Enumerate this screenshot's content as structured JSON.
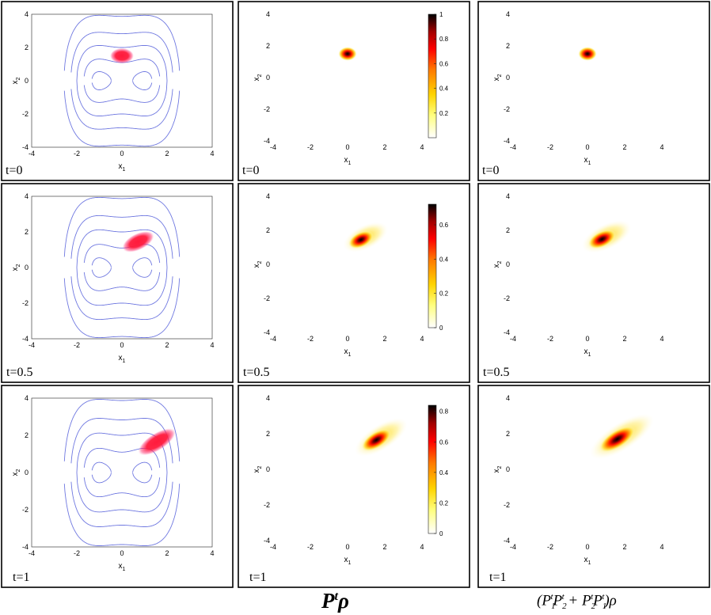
{
  "chart_data": {
    "type": "heatmap",
    "description_rows": [
      "t=0",
      "t=0.5",
      "t=1"
    ],
    "axes": {
      "xlabel": "x",
      "xlabel_sub": "1",
      "ylabel": "x",
      "ylabel_sub": "2",
      "xlim": [
        -4,
        4
      ],
      "ylim": [
        -4,
        4
      ],
      "xticks": [
        -4,
        -2,
        0,
        2,
        4
      ],
      "yticks": [
        -4,
        -2,
        0,
        2,
        4
      ]
    },
    "contour_levels": [
      -0.1,
      0.6,
      2.0,
      4.0,
      7.5
    ],
    "rows": [
      {
        "time_label": "t=0",
        "density_p": {
          "cx": 0.0,
          "cy": 1.5,
          "sx": 0.25,
          "sy": 0.22,
          "rho": 0.0
        },
        "density_q": {
          "cx": 0.0,
          "cy": 1.5,
          "sx": 0.25,
          "sy": 0.22,
          "rho": 0.0
        },
        "colorbar": {
          "max": 1.0,
          "ticks": [
            0.2,
            0.4,
            0.6,
            0.8,
            1
          ],
          "tick_labels": [
            "0.2",
            "0.4",
            "0.6",
            "0.8",
            "1"
          ]
        }
      },
      {
        "time_label": "t=0.5",
        "density_p": {
          "cx": 0.72,
          "cy": 1.45,
          "sx": 0.36,
          "sy": 0.22,
          "rho": 0.55
        },
        "density_q": {
          "cx": 0.78,
          "cy": 1.48,
          "sx": 0.4,
          "sy": 0.23,
          "rho": 0.55
        },
        "colorbar": {
          "max": 0.72,
          "ticks": [
            0,
            0.2,
            0.4,
            0.6
          ],
          "tick_labels": [
            "0",
            "0.2",
            "0.4",
            "0.6"
          ]
        }
      },
      {
        "time_label": "t=1",
        "density_p": {
          "cx": 1.55,
          "cy": 1.65,
          "sx": 0.45,
          "sy": 0.22,
          "rho": 0.72
        },
        "density_q": {
          "cx": 1.6,
          "cy": 1.7,
          "sx": 0.55,
          "sy": 0.24,
          "rho": 0.72
        },
        "colorbar": {
          "max": 0.84,
          "ticks": [
            0,
            0.2,
            0.4,
            0.6,
            0.8
          ],
          "tick_labels": [
            "0",
            "0.2",
            "0.4",
            "0.6",
            "0.8"
          ]
        }
      }
    ],
    "column_labels": {
      "middle": "P^t ρ",
      "right": "(P_1^t P_2^t + P_2^t P_1^t) ρ"
    }
  },
  "colors": {
    "contour": "#6f78e0",
    "blob": "#ff1a3c",
    "frame": "#000000"
  }
}
